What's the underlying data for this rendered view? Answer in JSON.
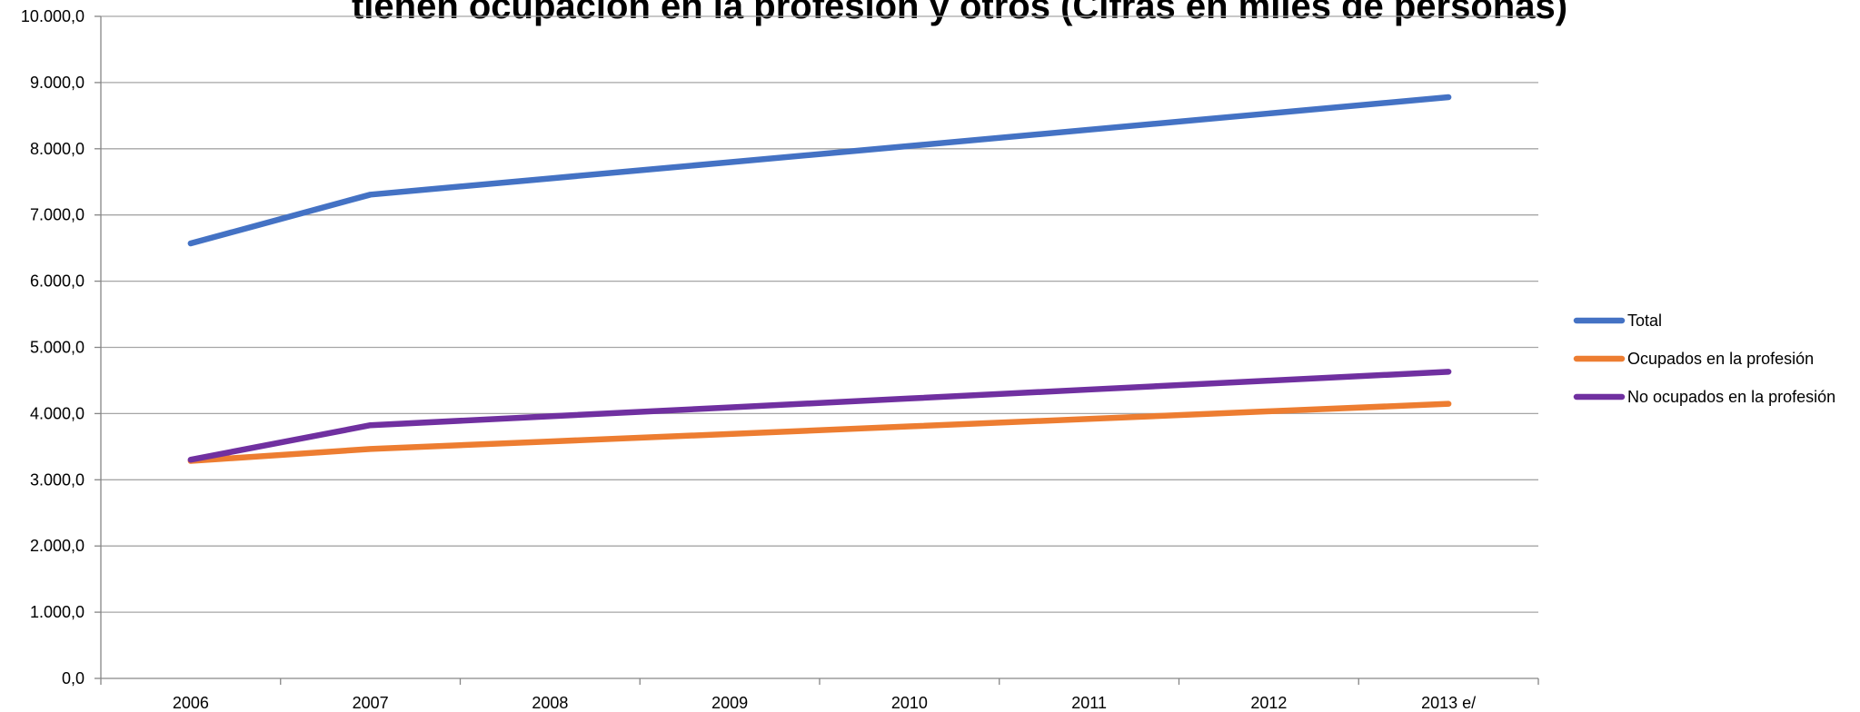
{
  "chart_data": {
    "type": "line",
    "title": "tienen ocupación en la profesión y otros  (Cifras en miles de personas)",
    "categories": [
      "2006",
      "2007",
      "2008",
      "2009",
      "2010",
      "2011",
      "2012",
      "2013 e/"
    ],
    "series": [
      {
        "name": "Total",
        "color": "#4472c4",
        "values": [
          6570,
          7307,
          7552,
          7797,
          8042,
          8288,
          8533,
          8779
        ]
      },
      {
        "name": "Ocupados en la profesión",
        "color": "#ed7d31",
        "values": [
          3285,
          3465,
          3579,
          3692,
          3806,
          3920,
          4034,
          4147
        ]
      },
      {
        "name": "No ocupados en la profesión",
        "color": "#7030a0",
        "values": [
          3303,
          3824,
          3959,
          4093,
          4228,
          4363,
          4497,
          4632
        ]
      }
    ],
    "ylim": [
      0,
      10000
    ],
    "yticks": [
      {
        "value": 0,
        "label": "0,0"
      },
      {
        "value": 1000,
        "label": "1.000,0"
      },
      {
        "value": 2000,
        "label": "2.000,0"
      },
      {
        "value": 3000,
        "label": "3.000,0"
      },
      {
        "value": 4000,
        "label": "4.000,0"
      },
      {
        "value": 5000,
        "label": "5.000,0"
      },
      {
        "value": 6000,
        "label": "6.000,0"
      },
      {
        "value": 7000,
        "label": "7.000,0"
      },
      {
        "value": 8000,
        "label": "8.000,0"
      },
      {
        "value": 9000,
        "label": "9.000,0"
      },
      {
        "value": 10000,
        "label": "10.000,0"
      }
    ],
    "grid": true,
    "legend": "right"
  }
}
